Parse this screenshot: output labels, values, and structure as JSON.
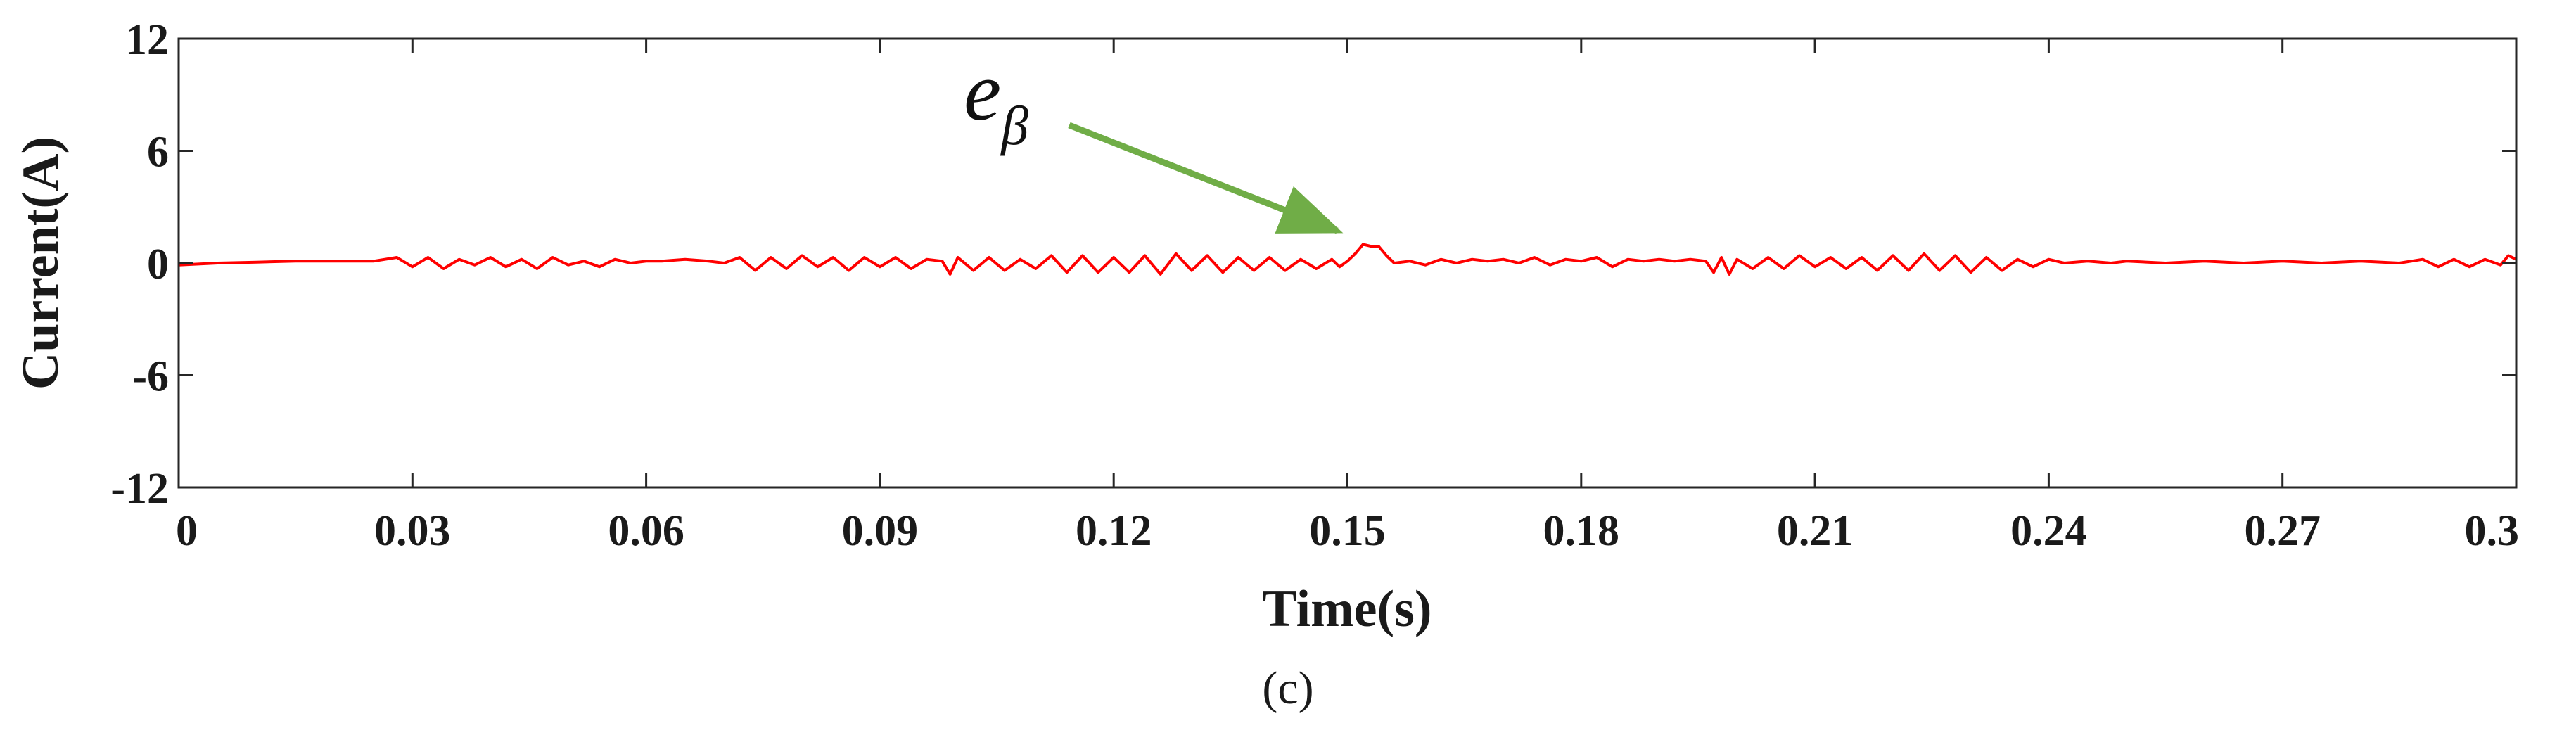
{
  "chart_data": {
    "type": "line",
    "title": "",
    "xlabel": "Time(s)",
    "ylabel": "Current(A)",
    "caption": "(c)",
    "xlim": [
      0,
      0.3
    ],
    "ylim": [
      -12,
      12
    ],
    "xticks": [
      0,
      0.03,
      0.06,
      0.09,
      0.12,
      0.15,
      0.18,
      0.21,
      0.24,
      0.27,
      0.3
    ],
    "xtick_labels": [
      "0",
      "0.03",
      "0.06",
      "0.09",
      "0.12",
      "0.15",
      "0.18",
      "0.21",
      "0.24",
      "0.27",
      "0.3"
    ],
    "yticks": [
      12,
      6,
      0,
      -6,
      -12
    ],
    "ytick_labels": [
      "12",
      "6",
      "0",
      "-6",
      "-12"
    ],
    "grid": false,
    "series": [
      {
        "name": "e_beta",
        "color": "#ff0000",
        "points": [
          [
            0.0,
            -0.1
          ],
          [
            0.005,
            0.0
          ],
          [
            0.01,
            0.05
          ],
          [
            0.015,
            0.1
          ],
          [
            0.02,
            0.1
          ],
          [
            0.025,
            0.1
          ],
          [
            0.028,
            0.3
          ],
          [
            0.03,
            -0.2
          ],
          [
            0.032,
            0.3
          ],
          [
            0.034,
            -0.3
          ],
          [
            0.036,
            0.2
          ],
          [
            0.038,
            -0.1
          ],
          [
            0.04,
            0.3
          ],
          [
            0.042,
            -0.2
          ],
          [
            0.044,
            0.2
          ],
          [
            0.046,
            -0.3
          ],
          [
            0.048,
            0.3
          ],
          [
            0.05,
            -0.1
          ],
          [
            0.052,
            0.1
          ],
          [
            0.054,
            -0.2
          ],
          [
            0.056,
            0.2
          ],
          [
            0.058,
            0.0
          ],
          [
            0.06,
            0.1
          ],
          [
            0.062,
            0.1
          ],
          [
            0.065,
            0.2
          ],
          [
            0.068,
            0.1
          ],
          [
            0.07,
            0.0
          ],
          [
            0.072,
            0.3
          ],
          [
            0.074,
            -0.4
          ],
          [
            0.076,
            0.3
          ],
          [
            0.078,
            -0.3
          ],
          [
            0.08,
            0.4
          ],
          [
            0.082,
            -0.2
          ],
          [
            0.084,
            0.3
          ],
          [
            0.086,
            -0.4
          ],
          [
            0.088,
            0.3
          ],
          [
            0.09,
            -0.2
          ],
          [
            0.092,
            0.3
          ],
          [
            0.094,
            -0.3
          ],
          [
            0.096,
            0.2
          ],
          [
            0.098,
            0.1
          ],
          [
            0.099,
            -0.6
          ],
          [
            0.1,
            0.3
          ],
          [
            0.102,
            -0.4
          ],
          [
            0.104,
            0.3
          ],
          [
            0.106,
            -0.4
          ],
          [
            0.108,
            0.2
          ],
          [
            0.11,
            -0.3
          ],
          [
            0.112,
            0.4
          ],
          [
            0.114,
            -0.5
          ],
          [
            0.116,
            0.4
          ],
          [
            0.118,
            -0.5
          ],
          [
            0.12,
            0.3
          ],
          [
            0.122,
            -0.5
          ],
          [
            0.124,
            0.4
          ],
          [
            0.126,
            -0.6
          ],
          [
            0.128,
            0.5
          ],
          [
            0.13,
            -0.4
          ],
          [
            0.132,
            0.4
          ],
          [
            0.134,
            -0.5
          ],
          [
            0.136,
            0.3
          ],
          [
            0.138,
            -0.4
          ],
          [
            0.14,
            0.3
          ],
          [
            0.142,
            -0.4
          ],
          [
            0.144,
            0.2
          ],
          [
            0.146,
            -0.3
          ],
          [
            0.148,
            0.2
          ],
          [
            0.149,
            -0.2
          ],
          [
            0.15,
            0.1
          ],
          [
            0.151,
            0.5
          ],
          [
            0.152,
            1.0
          ],
          [
            0.153,
            0.9
          ],
          [
            0.154,
            0.9
          ],
          [
            0.155,
            0.4
          ],
          [
            0.156,
            0.0
          ],
          [
            0.158,
            0.1
          ],
          [
            0.16,
            -0.1
          ],
          [
            0.162,
            0.2
          ],
          [
            0.164,
            0.0
          ],
          [
            0.166,
            0.2
          ],
          [
            0.168,
            0.1
          ],
          [
            0.17,
            0.2
          ],
          [
            0.172,
            0.0
          ],
          [
            0.174,
            0.3
          ],
          [
            0.176,
            -0.1
          ],
          [
            0.178,
            0.2
          ],
          [
            0.18,
            0.1
          ],
          [
            0.182,
            0.3
          ],
          [
            0.184,
            -0.2
          ],
          [
            0.186,
            0.2
          ],
          [
            0.188,
            0.1
          ],
          [
            0.19,
            0.2
          ],
          [
            0.192,
            0.1
          ],
          [
            0.194,
            0.2
          ],
          [
            0.196,
            0.1
          ],
          [
            0.197,
            -0.5
          ],
          [
            0.198,
            0.3
          ],
          [
            0.199,
            -0.6
          ],
          [
            0.2,
            0.2
          ],
          [
            0.202,
            -0.3
          ],
          [
            0.204,
            0.3
          ],
          [
            0.206,
            -0.3
          ],
          [
            0.208,
            0.4
          ],
          [
            0.21,
            -0.2
          ],
          [
            0.212,
            0.3
          ],
          [
            0.214,
            -0.3
          ],
          [
            0.216,
            0.3
          ],
          [
            0.218,
            -0.4
          ],
          [
            0.22,
            0.4
          ],
          [
            0.222,
            -0.4
          ],
          [
            0.224,
            0.5
          ],
          [
            0.226,
            -0.4
          ],
          [
            0.228,
            0.4
          ],
          [
            0.23,
            -0.5
          ],
          [
            0.232,
            0.3
          ],
          [
            0.234,
            -0.4
          ],
          [
            0.236,
            0.2
          ],
          [
            0.238,
            -0.2
          ],
          [
            0.24,
            0.2
          ],
          [
            0.242,
            0.0
          ],
          [
            0.245,
            0.1
          ],
          [
            0.248,
            0.0
          ],
          [
            0.25,
            0.1
          ],
          [
            0.255,
            0.0
          ],
          [
            0.26,
            0.1
          ],
          [
            0.265,
            0.0
          ],
          [
            0.27,
            0.1
          ],
          [
            0.275,
            0.0
          ],
          [
            0.28,
            0.1
          ],
          [
            0.285,
            0.0
          ],
          [
            0.288,
            0.2
          ],
          [
            0.29,
            -0.2
          ],
          [
            0.292,
            0.2
          ],
          [
            0.294,
            -0.2
          ],
          [
            0.296,
            0.2
          ],
          [
            0.298,
            -0.1
          ],
          [
            0.299,
            0.4
          ],
          [
            0.3,
            0.2
          ]
        ]
      }
    ],
    "annotation": {
      "text": "e",
      "subscript": "β",
      "arrow_color": "#70ad47",
      "arrow_target": [
        0.1505,
        0.9
      ]
    }
  }
}
